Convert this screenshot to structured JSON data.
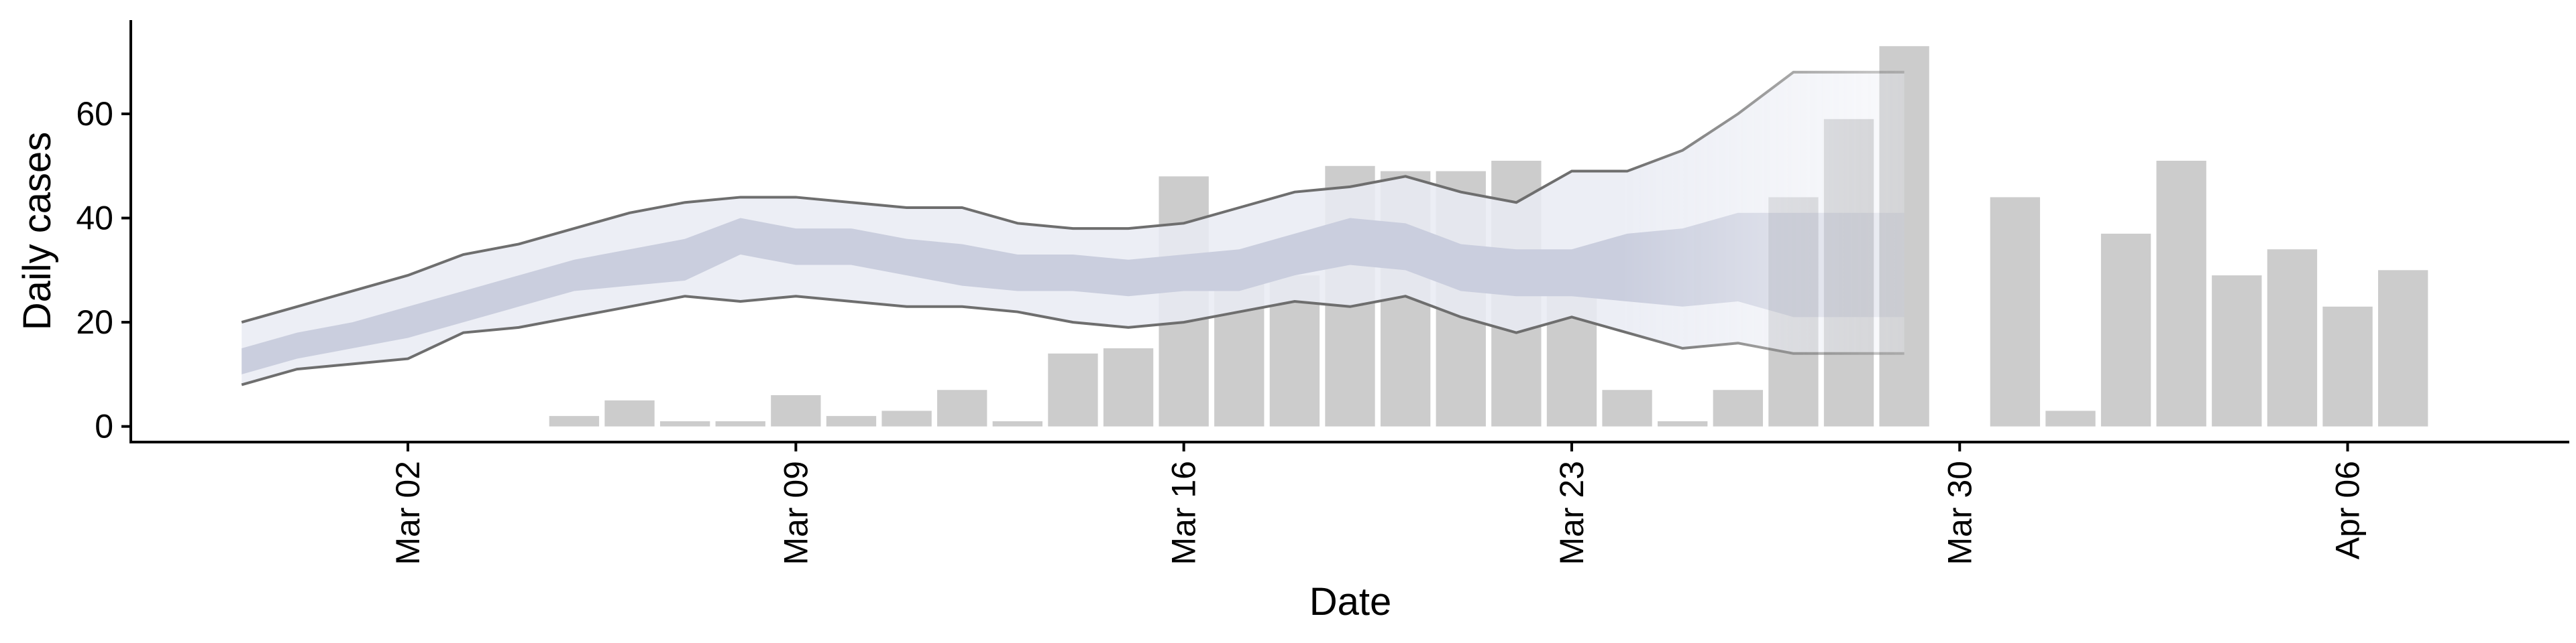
{
  "chart_data": {
    "type": "bar",
    "xlabel": "Date",
    "ylabel": "Daily cases",
    "x_axis": {
      "start": "2020-02-26",
      "end": "2020-04-10",
      "tick_dates": [
        "2020-03-02",
        "2020-03-09",
        "2020-03-16",
        "2020-03-23",
        "2020-03-30",
        "2020-04-06"
      ],
      "tick_labels": [
        "Mar 02",
        "Mar 09",
        "Mar 16",
        "Mar 23",
        "Mar 30",
        "Apr 06"
      ]
    },
    "y_axis": {
      "ylim": [
        -3,
        78
      ],
      "tick_values": [
        0,
        20,
        40,
        60
      ],
      "tick_labels": [
        "0",
        "20",
        "40",
        "60"
      ]
    },
    "grid": false,
    "legend": "none",
    "colors": {
      "bars": "#cccccc",
      "band_outer": "#e9ebf3",
      "band_inner": "#c6cbdc",
      "bound_lines": "#6e6e6e",
      "axis": "#000000"
    },
    "bars": {
      "dates": [
        "2020-03-05",
        "2020-03-06",
        "2020-03-07",
        "2020-03-08",
        "2020-03-09",
        "2020-03-10",
        "2020-03-11",
        "2020-03-12",
        "2020-03-13",
        "2020-03-14",
        "2020-03-15",
        "2020-03-16",
        "2020-03-17",
        "2020-03-18",
        "2020-03-19",
        "2020-03-20",
        "2020-03-21",
        "2020-03-22",
        "2020-03-23",
        "2020-03-24",
        "2020-03-25",
        "2020-03-26",
        "2020-03-27",
        "2020-03-28",
        "2020-03-29",
        "2020-03-31",
        "2020-04-01",
        "2020-04-02",
        "2020-04-03",
        "2020-04-04",
        "2020-04-05",
        "2020-04-06",
        "2020-04-07"
      ],
      "values": [
        2,
        5,
        1,
        1,
        6,
        2,
        3,
        7,
        1,
        14,
        15,
        48,
        31,
        29,
        50,
        49,
        49,
        51,
        29,
        7,
        1,
        7,
        44,
        59,
        73,
        44,
        3,
        37,
        51,
        29,
        34,
        23,
        30
      ]
    },
    "band_series": {
      "dates": [
        "2020-02-28",
        "2020-02-29",
        "2020-03-01",
        "2020-03-02",
        "2020-03-03",
        "2020-03-04",
        "2020-03-05",
        "2020-03-06",
        "2020-03-07",
        "2020-03-08",
        "2020-03-09",
        "2020-03-10",
        "2020-03-11",
        "2020-03-12",
        "2020-03-13",
        "2020-03-14",
        "2020-03-15",
        "2020-03-16",
        "2020-03-17",
        "2020-03-18",
        "2020-03-19",
        "2020-03-20",
        "2020-03-21",
        "2020-03-22",
        "2020-03-23",
        "2020-03-24",
        "2020-03-25",
        "2020-03-26",
        "2020-03-27",
        "2020-03-28",
        "2020-03-29"
      ],
      "outer_upper": [
        20,
        23,
        26,
        29,
        33,
        35,
        38,
        41,
        43,
        44,
        44,
        43,
        42,
        42,
        39,
        38,
        38,
        39,
        42,
        45,
        46,
        48,
        45,
        43,
        49,
        49,
        53,
        60,
        68,
        68,
        68
      ],
      "outer_lower": [
        8,
        11,
        12,
        13,
        18,
        19,
        21,
        23,
        25,
        24,
        25,
        24,
        23,
        23,
        22,
        20,
        19,
        20,
        22,
        24,
        23,
        25,
        21,
        18,
        21,
        18,
        15,
        16,
        14,
        14,
        14
      ],
      "inner_upper": [
        15,
        18,
        20,
        23,
        26,
        29,
        32,
        34,
        36,
        40,
        38,
        38,
        36,
        35,
        33,
        33,
        32,
        33,
        34,
        37,
        40,
        39,
        35,
        34,
        34,
        37,
        38,
        41,
        41,
        41,
        41
      ],
      "inner_lower": [
        10,
        13,
        15,
        17,
        20,
        23,
        26,
        27,
        28,
        33,
        31,
        31,
        29,
        27,
        26,
        26,
        25,
        26,
        26,
        29,
        31,
        30,
        26,
        25,
        25,
        24,
        23,
        24,
        21,
        21,
        21
      ],
      "fade_from": "2020-03-23"
    }
  }
}
